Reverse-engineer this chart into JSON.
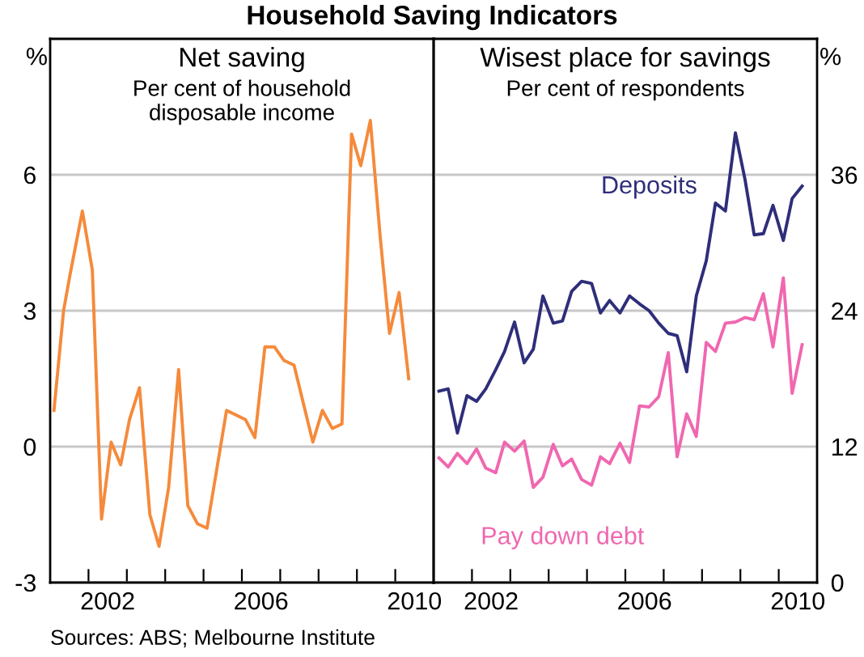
{
  "chart_data": [
    {
      "type": "line",
      "title": "Net saving",
      "subtitle": "Per cent of household\ndisposable income",
      "ylabel": "%",
      "annotations": [
        "Household Saving Indicators",
        "Sources: ABS; Melbourne Institute"
      ],
      "x": [
        2001.1,
        2001.35,
        2001.52,
        2001.84,
        2002.1,
        2002.34,
        2002.59,
        2002.84,
        2003.07,
        2003.33,
        2003.6,
        2003.84,
        2004.09,
        2004.35,
        2004.59,
        2004.84,
        2005.09,
        2005.6,
        2006.09,
        2006.34,
        2006.6,
        2006.85,
        2007.1,
        2007.36,
        2007.85,
        2008.1,
        2008.36,
        2008.61,
        2008.86,
        2009.1,
        2009.35,
        2009.61,
        2009.85,
        2010.1,
        2010.35
      ],
      "series": [
        {
          "color": "#f58a3b",
          "values": [
            0.8,
            3.0,
            3.8,
            5.2,
            3.9,
            -1.6,
            0.1,
            -0.4,
            0.6,
            1.3,
            -1.5,
            -2.2,
            -0.9,
            1.7,
            -1.3,
            -1.7,
            -1.8,
            0.8,
            0.6,
            0.2,
            2.2,
            2.2,
            1.9,
            1.8,
            0.1,
            0.8,
            0.4,
            0.5,
            6.9,
            6.2,
            7.2,
            4.6,
            2.5,
            3.4,
            1.5
          ]
        }
      ],
      "xlim": [
        2001,
        2011
      ],
      "xticks": [
        {
          "value": 2002,
          "label": null
        },
        {
          "value": 2002.5,
          "label": "2002"
        },
        {
          "value": 2003,
          "label": null
        },
        {
          "value": 2004,
          "label": null
        },
        {
          "value": 2005,
          "label": null
        },
        {
          "value": 2006,
          "label": null
        },
        {
          "value": 2006.5,
          "label": "2006"
        },
        {
          "value": 2007,
          "label": null
        },
        {
          "value": 2008,
          "label": null
        },
        {
          "value": 2009,
          "label": null
        },
        {
          "value": 2010,
          "label": null
        },
        {
          "value": 2010.5,
          "label": "2010"
        }
      ],
      "ylim": [
        -3,
        9
      ],
      "yticks": [
        -3,
        0,
        3,
        6
      ],
      "grid": "y",
      "legend": false
    },
    {
      "type": "line",
      "title": "Wisest place for savings",
      "subtitle": "Per cent of respondents",
      "y2label": "%",
      "x": [
        2001.14,
        2001.38,
        2001.62,
        2001.87,
        2002.12,
        2002.36,
        2002.62,
        2002.85,
        2003.11,
        2003.36,
        2003.6,
        2003.85,
        2004.12,
        2004.36,
        2004.6,
        2004.86,
        2005.12,
        2005.35,
        2005.59,
        2005.86,
        2006.11,
        2006.37,
        2006.62,
        2006.87,
        2007.12,
        2007.35,
        2007.6,
        2007.85,
        2008.11,
        2008.35,
        2008.61,
        2008.87,
        2009.12,
        2009.36,
        2009.6,
        2009.85,
        2010.12,
        2010.35,
        2010.61
      ],
      "series": [
        {
          "name": "Deposits",
          "color": "#2e2e7a",
          "axis": "y2",
          "values": [
            16.9,
            17.1,
            13.2,
            16.5,
            16.0,
            17.1,
            18.8,
            20.4,
            23.0,
            19.4,
            20.6,
            25.3,
            22.9,
            23.1,
            25.7,
            26.6,
            26.4,
            23.8,
            24.9,
            23.8,
            25.3,
            24.6,
            24.0,
            22.9,
            22.0,
            21.8,
            18.6,
            25.3,
            28.4,
            33.5,
            32.8,
            39.7,
            35.6,
            30.7,
            30.8,
            33.3,
            30.2,
            33.9,
            35.0
          ]
        },
        {
          "name": "Pay down debt",
          "color": "#f067b0",
          "axis": "y2",
          "values": [
            11.0,
            10.2,
            11.4,
            10.5,
            11.8,
            10.1,
            9.7,
            12.4,
            11.6,
            12.5,
            8.4,
            9.3,
            12.2,
            10.3,
            10.9,
            9.1,
            8.6,
            11.1,
            10.5,
            12.3,
            10.6,
            15.6,
            15.5,
            16.4,
            20.3,
            11.1,
            14.9,
            12.9,
            21.2,
            20.4,
            22.9,
            23.0,
            23.4,
            23.2,
            25.5,
            20.8,
            26.9,
            16.7,
            21.0
          ]
        }
      ],
      "xlim": [
        2001,
        2011
      ],
      "xticks": [
        {
          "value": 2002,
          "label": null
        },
        {
          "value": 2002.5,
          "label": "2002"
        },
        {
          "value": 2003,
          "label": null
        },
        {
          "value": 2004,
          "label": null
        },
        {
          "value": 2005,
          "label": null
        },
        {
          "value": 2006,
          "label": null
        },
        {
          "value": 2006.5,
          "label": "2006"
        },
        {
          "value": 2007,
          "label": null
        },
        {
          "value": 2008,
          "label": null
        },
        {
          "value": 2009,
          "label": null
        },
        {
          "value": 2010,
          "label": null
        },
        {
          "value": 2010.5,
          "label": "2010"
        }
      ],
      "y2lim": [
        0,
        48
      ],
      "y2ticks": [
        0,
        12,
        24,
        36
      ],
      "grid": "y",
      "legend": false
    }
  ]
}
